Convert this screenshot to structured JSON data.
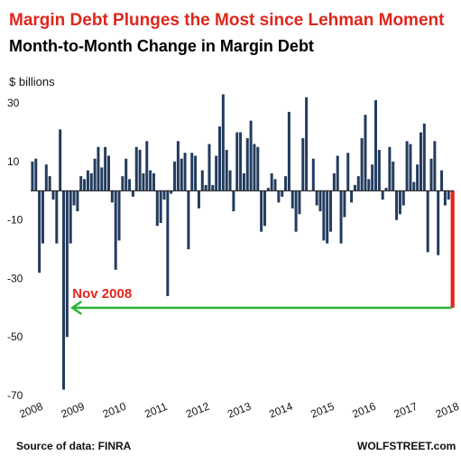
{
  "chart_data": {
    "type": "bar",
    "title": "Margin Debt Plunges the Most since Lehman Moment",
    "subtitle": "Month-to-Month Change in Margin Debt",
    "ylabel": "$ billions",
    "ylim": [
      -70,
      35
    ],
    "yticks": [
      30,
      10,
      -10,
      -30,
      -50,
      -70
    ],
    "grid": false,
    "x_tick_labels": [
      "2008",
      "2009",
      "2010",
      "2011",
      "2012",
      "2013",
      "2014",
      "2015",
      "2016",
      "2017",
      "2018"
    ],
    "x_start": "2008-01",
    "bar_color": "#233c5e",
    "highlight_color": "#e0261c",
    "series": [
      {
        "values": [
          10,
          11,
          -28,
          -18,
          9,
          5,
          -3,
          -18,
          21,
          -68,
          -50,
          -18,
          -5,
          -7,
          5,
          4,
          7,
          6,
          11,
          15,
          8,
          15,
          12,
          -4,
          -27,
          -17,
          5,
          11,
          4,
          -2,
          15,
          14,
          6,
          17,
          7,
          6,
          -12,
          -11,
          -3,
          -36,
          -1,
          10,
          17,
          11,
          13,
          -20,
          13,
          12,
          -6,
          7,
          2,
          16,
          2,
          12,
          22,
          33,
          14,
          7,
          -7,
          20,
          20,
          6,
          18,
          24,
          16,
          15,
          -14,
          -12,
          1,
          6,
          4,
          -4,
          -2,
          5,
          27,
          -6,
          -14,
          -8,
          18,
          32,
          0,
          11,
          -5,
          -7,
          -17,
          -18,
          -14,
          6,
          12,
          -18,
          -9,
          13,
          -4,
          2,
          5,
          18,
          26,
          4,
          9,
          31,
          14,
          -3,
          1,
          15,
          10,
          -10,
          -8,
          -5,
          17,
          16,
          3,
          9,
          20,
          23,
          -21,
          11,
          17,
          -22,
          7,
          -5,
          -3,
          -40
        ],
        "highlight_last": true
      }
    ],
    "annotations": [
      {
        "text": "Nov 2008",
        "y": -40,
        "color": "#e0261c",
        "arrow_color": "#2bb33a"
      }
    ]
  },
  "source": "Source of data: FINRA",
  "brand": "WOLFSTREET.com"
}
